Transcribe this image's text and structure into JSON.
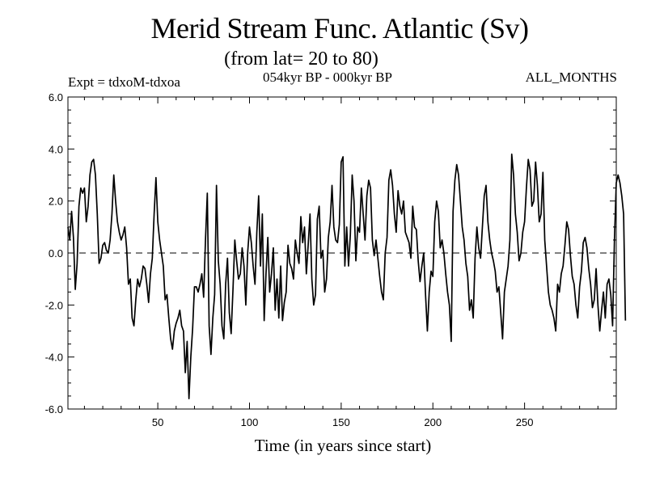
{
  "header": {
    "title": "Merid Stream Func. Atlantic (Sv)",
    "subtitle": "(from lat= 20 to 80)",
    "expt": "Expt = tdxoM-tdxoa",
    "period": "054kyr BP - 000kyr BP",
    "months": "ALL_MONTHS"
  },
  "chart_data": {
    "type": "line",
    "title": "Merid Stream Func. Atlantic (Sv)",
    "subtitle": "(from lat= 20 to 80)",
    "xlabel": "Time (in years since start)",
    "ylabel": "",
    "xlim": [
      1,
      300
    ],
    "ylim": [
      -6.0,
      6.0
    ],
    "x_ticks": [
      50,
      100,
      150,
      200,
      250
    ],
    "x_tick_labels": [
      "50",
      "100",
      "150",
      "200",
      "250"
    ],
    "y_ticks": [
      -6,
      -4,
      -2,
      0,
      2,
      4,
      6
    ],
    "y_tick_labels": [
      "-6.0",
      "-4.0",
      "-2.0",
      "0.0",
      "2.0",
      "4.0",
      "6.0"
    ],
    "grid": false,
    "zero_line": "dashed",
    "line_color": "#000000",
    "series": [
      {
        "x_start": 1,
        "x_step": 1,
        "values": [
          1.0,
          0.5,
          1.6,
          0.6,
          -1.4,
          -0.4,
          1.8,
          2.5,
          2.3,
          2.5,
          1.2,
          1.8,
          3.0,
          3.5,
          3.6,
          3.0,
          1.5,
          -0.4,
          -0.2,
          0.3,
          0.4,
          0.1,
          0.0,
          0.5,
          1.5,
          3.0,
          2.0,
          1.2,
          0.8,
          0.5,
          0.7,
          1.0,
          0.2,
          -1.2,
          -1.0,
          -2.5,
          -2.8,
          -1.8,
          -1.0,
          -1.3,
          -1.0,
          -0.5,
          -0.6,
          -1.2,
          -1.9,
          -0.8,
          -0.2,
          1.5,
          2.9,
          1.2,
          0.5,
          0.0,
          -0.5,
          -1.8,
          -1.6,
          -2.5,
          -3.3,
          -3.7,
          -3.0,
          -2.7,
          -2.5,
          -2.2,
          -2.8,
          -3.0,
          -4.6,
          -3.4,
          -5.6,
          -4.0,
          -2.9,
          -1.3,
          -1.3,
          -1.5,
          -1.2,
          -0.8,
          -1.7,
          0.5,
          2.3,
          -2.8,
          -3.9,
          -2.5,
          -1.6,
          2.6,
          -0.3,
          -1.2,
          -2.8,
          -3.3,
          -1.2,
          -0.2,
          -2.3,
          -3.1,
          -1.4,
          0.5,
          -0.3,
          -1.0,
          -0.8,
          0.2,
          -0.5,
          -2.0,
          0.0,
          1.0,
          0.4,
          -0.5,
          -1.2,
          0.8,
          2.2,
          -0.5,
          1.5,
          -2.6,
          -0.8,
          0.6,
          -1.5,
          -0.8,
          0.2,
          -2.2,
          -1.0,
          -2.5,
          -0.5,
          -2.6,
          -1.9,
          -1.5,
          0.3,
          -0.4,
          -0.6,
          -1.0,
          0.5,
          0.0,
          -0.4,
          1.4,
          0.4,
          1.0,
          -0.8,
          0.3,
          1.5,
          -1.0,
          -2.0,
          -1.6,
          1.3,
          1.8,
          -0.2,
          0.1,
          -1.5,
          -1.0,
          0.6,
          1.2,
          2.6,
          1.0,
          0.5,
          0.4,
          1.1,
          3.5,
          3.7,
          -0.5,
          1.0,
          -0.5,
          0.7,
          3.0,
          2.0,
          -0.3,
          1.0,
          0.8,
          2.5,
          1.5,
          0.5,
          2.2,
          2.8,
          2.5,
          0.5,
          -0.1,
          0.5,
          -0.2,
          -0.9,
          -1.5,
          -1.8,
          0.0,
          0.6,
          2.8,
          3.2,
          2.6,
          1.5,
          0.8,
          2.4,
          1.8,
          1.5,
          2.0,
          0.8,
          0.6,
          0.4,
          -0.2,
          1.8,
          1.0,
          0.9,
          -0.3,
          -1.1,
          -0.5,
          0.0,
          -1.6,
          -3.0,
          -1.5,
          -0.7,
          -0.9,
          1.2,
          2.0,
          1.6,
          0.2,
          0.5,
          0.0,
          -0.8,
          -1.5,
          -2.0,
          -3.4,
          1.6,
          2.8,
          3.4,
          3.0,
          2.0,
          1.0,
          0.5,
          -0.4,
          -0.9,
          -2.2,
          -1.8,
          -2.5,
          -0.2,
          1.0,
          0.2,
          -0.2,
          1.0,
          2.2,
          2.6,
          1.2,
          0.5,
          0.0,
          -0.3,
          -0.7,
          -1.5,
          -1.3,
          -2.3,
          -3.3,
          -1.5,
          -1.0,
          -0.5,
          0.5,
          3.8,
          3.0,
          1.5,
          0.8,
          -0.3,
          0.0,
          0.8,
          1.2,
          2.5,
          3.6,
          3.2,
          1.8,
          2.0,
          3.5,
          2.6,
          1.2,
          1.5,
          3.1,
          0.5,
          -0.5,
          -1.5,
          -2.0,
          -2.2,
          -2.5,
          -3.0,
          -1.2,
          -1.5,
          -0.8,
          -0.5,
          0.3,
          1.2,
          0.9,
          -0.1,
          -0.9,
          -1.2,
          -2.0,
          -2.5,
          -1.3,
          -0.7,
          0.4,
          0.6,
          0.2,
          -0.6,
          -1.2,
          -2.1,
          -1.8,
          -0.6,
          -2.0,
          -3.0,
          -2.2,
          -1.5,
          -2.5,
          -1.2,
          -1.0,
          -1.6,
          -2.8,
          0.5,
          2.7,
          3.0,
          2.7,
          2.2,
          1.5,
          -2.6
        ]
      }
    ]
  }
}
